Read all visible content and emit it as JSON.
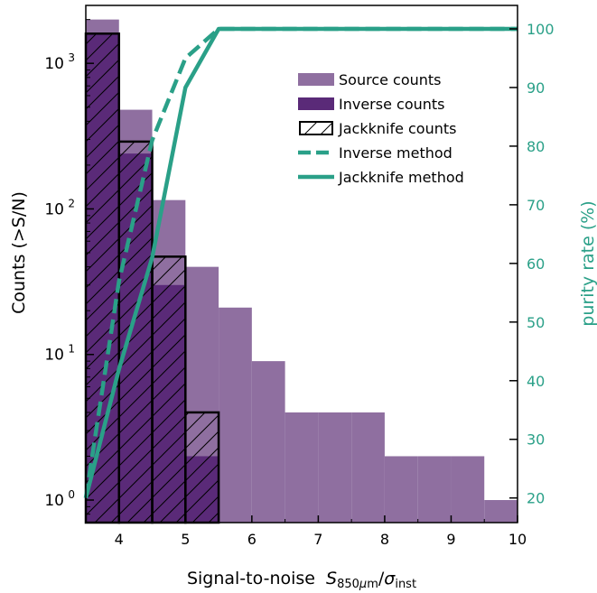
{
  "chart_data": {
    "type": "bar",
    "xlabel": "Signal-to-noise",
    "xlabel_math": {
      "S": "S",
      "sub1": "850",
      "mu": "μ",
      "m": "m",
      "slash": "/",
      "sigma": "σ",
      "sub2": "inst"
    },
    "ylabel": "Counts (>S/N)",
    "y2label": "purity rate (%)",
    "xlim": [
      3.5,
      10
    ],
    "ylim": [
      0.7,
      2500
    ],
    "yscale": "log",
    "y2lim": [
      15.8,
      104
    ],
    "xticks": [
      4,
      5,
      6,
      7,
      8,
      9,
      10
    ],
    "yticks": [
      {
        "base": "10",
        "exp": "0",
        "value": 1
      },
      {
        "base": "10",
        "exp": "1",
        "value": 10
      },
      {
        "base": "10",
        "exp": "2",
        "value": 100
      },
      {
        "base": "10",
        "exp": "3",
        "value": 1000
      }
    ],
    "y2ticks": [
      20,
      30,
      40,
      50,
      60,
      70,
      80,
      90,
      100
    ],
    "bin_edges": [
      3.5,
      4.0,
      4.5,
      5.0,
      5.5,
      6.0,
      6.5,
      7.0,
      7.5,
      8.0,
      8.5,
      9.0,
      9.5,
      10.0
    ],
    "series": [
      {
        "name": "Source counts",
        "kind": "bar",
        "color": "#8f6fa0",
        "values": [
          2000,
          480,
          115,
          40,
          21,
          9,
          4,
          4,
          4,
          2,
          2,
          2,
          1
        ]
      },
      {
        "name": "Inverse counts",
        "kind": "bar",
        "color": "#5a2a78",
        "values": [
          1600,
          240,
          30,
          2,
          null,
          null,
          null,
          null,
          null,
          null,
          null,
          null,
          null
        ]
      },
      {
        "name": "Jackknife counts",
        "kind": "hatched-outline",
        "color": "#000000",
        "edges": [
          3.5,
          4.0,
          4.5,
          5.0,
          5.5
        ],
        "values": [
          1600,
          290,
          47,
          4
        ]
      },
      {
        "name": "Inverse method",
        "kind": "dashed-line",
        "axis": "right",
        "color": "#2aa088",
        "x": [
          3.5,
          4.0,
          4.5,
          5.0,
          5.5,
          6.0,
          10.0
        ],
        "values": [
          20,
          57,
          81,
          95,
          100,
          100,
          100
        ]
      },
      {
        "name": "Jackknife method",
        "kind": "line",
        "axis": "right",
        "color": "#2aa088",
        "x": [
          3.5,
          4.0,
          4.5,
          5.0,
          5.5,
          6.0,
          10.0
        ],
        "values": [
          20,
          42,
          61,
          90,
          100,
          100,
          100
        ]
      }
    ],
    "legend": {
      "position": "upper-right"
    },
    "grid": false
  }
}
